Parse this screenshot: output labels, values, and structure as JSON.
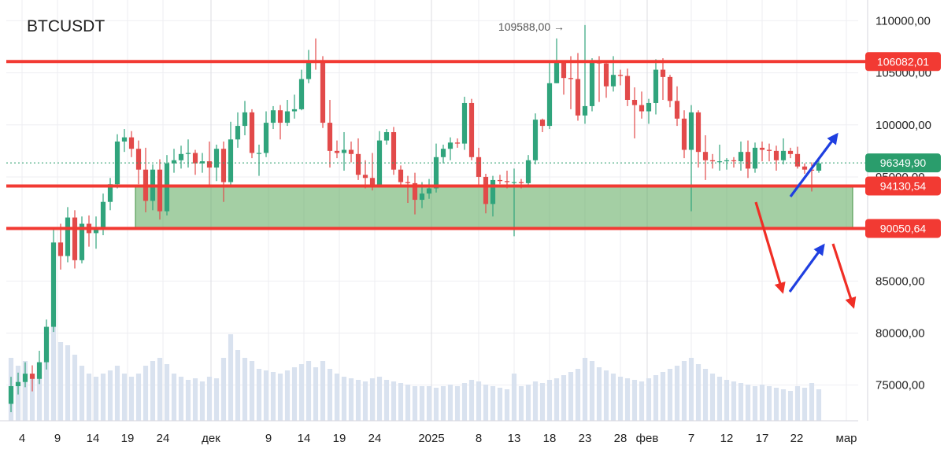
{
  "chart_data": {
    "type": "candlestick",
    "symbol": "BTCUSDT",
    "x_labels": [
      "4",
      "9",
      "14",
      "19",
      "24",
      "дек",
      "9",
      "14",
      "19",
      "24",
      "2025",
      "8",
      "13",
      "18",
      "23",
      "28",
      "фев",
      "7",
      "12",
      "17",
      "22",
      "мар"
    ],
    "y_ticks": [
      "75000,00",
      "80000,00",
      "85000,00",
      "90000,00",
      "95000,00",
      "100000,00",
      "105000,00",
      "110000,00"
    ],
    "ylim": [
      72000,
      111500
    ],
    "current_price": 96349.9,
    "current_price_label": "96349,90",
    "max_annotation": "109588,00 →",
    "max_value": 109588.0,
    "horizontal_levels": [
      {
        "value": 106082.01,
        "label": "106082,01",
        "color": "#f23a33"
      },
      {
        "value": 94130.54,
        "label": "94130,54",
        "color": "#f23a33"
      },
      {
        "value": 90050.64,
        "label": "90050,64",
        "color": "#f23a33"
      }
    ],
    "zone": {
      "from": 90050.64,
      "to": 94130.54,
      "color": "#5aa85a"
    },
    "candles": [
      [
        73200,
        74900,
        72400,
        75800,
        0.4
      ],
      [
        74900,
        75300,
        74100,
        76200,
        0.35
      ],
      [
        75300,
        76100,
        74800,
        77200,
        0.38
      ],
      [
        76100,
        75600,
        74400,
        76900,
        0.3
      ],
      [
        75600,
        77200,
        75100,
        78300,
        0.28
      ],
      [
        77200,
        80600,
        76500,
        81300,
        0.45
      ],
      [
        80600,
        88700,
        80100,
        89900,
        0.6
      ],
      [
        88700,
        87400,
        86100,
        90500,
        0.5
      ],
      [
        87400,
        91100,
        86800,
        92100,
        0.48
      ],
      [
        91100,
        87000,
        86200,
        91800,
        0.42
      ],
      [
        87000,
        90500,
        86700,
        91200,
        0.35
      ],
      [
        90500,
        89600,
        88300,
        91300,
        0.3
      ],
      [
        89600,
        90000,
        88100,
        91200,
        0.28
      ],
      [
        90000,
        92600,
        89400,
        93400,
        0.3
      ],
      [
        92600,
        94300,
        91800,
        94900,
        0.32
      ],
      [
        94300,
        98400,
        93900,
        99100,
        0.35
      ],
      [
        98400,
        98800,
        97400,
        99600,
        0.3
      ],
      [
        98800,
        97700,
        96900,
        99400,
        0.28
      ],
      [
        97700,
        95700,
        94300,
        98500,
        0.3
      ],
      [
        95700,
        92700,
        91600,
        97800,
        0.35
      ],
      [
        92700,
        95700,
        91800,
        96200,
        0.38
      ],
      [
        95700,
        91700,
        90900,
        96700,
        0.4
      ],
      [
        91700,
        96300,
        91300,
        97100,
        0.36
      ],
      [
        96300,
        96600,
        95400,
        97700,
        0.3
      ],
      [
        96600,
        97200,
        95800,
        98000,
        0.28
      ],
      [
        97200,
        97300,
        95900,
        98600,
        0.26
      ],
      [
        97300,
        96300,
        95200,
        97600,
        0.27
      ],
      [
        96300,
        96500,
        95400,
        97300,
        0.25
      ],
      [
        96500,
        95900,
        94200,
        98400,
        0.28
      ],
      [
        95900,
        97700,
        94600,
        98100,
        0.27
      ],
      [
        97700,
        94500,
        92600,
        98400,
        0.4
      ],
      [
        94500,
        98600,
        94100,
        100300,
        0.55
      ],
      [
        98600,
        99900,
        97800,
        101200,
        0.45
      ],
      [
        99900,
        101200,
        99000,
        102300,
        0.4
      ],
      [
        101200,
        97300,
        96800,
        101500,
        0.38
      ],
      [
        97300,
        97300,
        95100,
        98100,
        0.33
      ],
      [
        97300,
        100200,
        96900,
        101300,
        0.32
      ],
      [
        100200,
        101400,
        99600,
        101800,
        0.31
      ],
      [
        101400,
        100200,
        98600,
        101900,
        0.3
      ],
      [
        100200,
        101300,
        99900,
        102400,
        0.32
      ],
      [
        101300,
        101500,
        100600,
        102900,
        0.34
      ],
      [
        101500,
        104400,
        101400,
        105300,
        0.36
      ],
      [
        104400,
        106100,
        104000,
        107200,
        0.38
      ],
      [
        106100,
        106000,
        105300,
        108300,
        0.34
      ],
      [
        106000,
        100200,
        99700,
        106600,
        0.38
      ],
      [
        100200,
        97500,
        95900,
        102400,
        0.33
      ],
      [
        97500,
        97300,
        96800,
        98500,
        0.3
      ],
      [
        97300,
        97600,
        95600,
        99300,
        0.28
      ],
      [
        97600,
        97200,
        96400,
        98400,
        0.27
      ],
      [
        97200,
        95200,
        94700,
        98700,
        0.26
      ],
      [
        95200,
        94900,
        93900,
        96600,
        0.25
      ],
      [
        94900,
        94200,
        93700,
        97300,
        0.27
      ],
      [
        94200,
        98500,
        94000,
        99400,
        0.28
      ],
      [
        98500,
        99300,
        98100,
        99600,
        0.26
      ],
      [
        99300,
        95700,
        95200,
        99800,
        0.25
      ],
      [
        95700,
        94500,
        94000,
        96100,
        0.24
      ],
      [
        94500,
        94400,
        92500,
        95100,
        0.23
      ],
      [
        94400,
        92800,
        91400,
        95400,
        0.22
      ],
      [
        92800,
        93400,
        92000,
        94500,
        0.22
      ],
      [
        93400,
        93900,
        92900,
        94800,
        0.22
      ],
      [
        93900,
        96900,
        93500,
        98200,
        0.21
      ],
      [
        96900,
        97700,
        96300,
        98100,
        0.22
      ],
      [
        97700,
        98300,
        96600,
        98800,
        0.23
      ],
      [
        98300,
        98200,
        97800,
        98700,
        0.22
      ],
      [
        98200,
        102100,
        97600,
        102700,
        0.24
      ],
      [
        102100,
        96900,
        96600,
        102500,
        0.26
      ],
      [
        96900,
        95000,
        94100,
        97800,
        0.25
      ],
      [
        95000,
        92400,
        91500,
        95300,
        0.23
      ],
      [
        92400,
        94700,
        91200,
        95100,
        0.22
      ],
      [
        94700,
        94600,
        94300,
        95200,
        0.21
      ],
      [
        94600,
        94500,
        93900,
        95600,
        0.2
      ],
      [
        94500,
        94500,
        89300,
        95800,
        0.3
      ],
      [
        94500,
        94400,
        93900,
        94800,
        0.22
      ],
      [
        94400,
        96600,
        94200,
        97100,
        0.23
      ],
      [
        96600,
        100500,
        96200,
        101100,
        0.25
      ],
      [
        100500,
        99900,
        99300,
        100600,
        0.24
      ],
      [
        99900,
        104000,
        99600,
        106000,
        0.26
      ],
      [
        104000,
        106100,
        104000,
        108300,
        0.27
      ],
      [
        106100,
        104500,
        102900,
        106200,
        0.29
      ],
      [
        104500,
        104400,
        101500,
        106600,
        0.31
      ],
      [
        104400,
        100900,
        100400,
        106900,
        0.33
      ],
      [
        100900,
        101800,
        100100,
        109588,
        0.4
      ],
      [
        101800,
        106100,
        101300,
        106400,
        0.38
      ],
      [
        106100,
        105900,
        102200,
        106600,
        0.34
      ],
      [
        105900,
        103700,
        102600,
        106000,
        0.32
      ],
      [
        103700,
        104800,
        103200,
        106600,
        0.3
      ],
      [
        104800,
        104700,
        103800,
        105300,
        0.28
      ],
      [
        104700,
        102400,
        101800,
        105400,
        0.27
      ],
      [
        102400,
        101900,
        98700,
        103600,
        0.26
      ],
      [
        101900,
        101300,
        100600,
        103200,
        0.25
      ],
      [
        101300,
        102100,
        100100,
        102500,
        0.27
      ],
      [
        102100,
        105300,
        101000,
        106300,
        0.29
      ],
      [
        105300,
        104600,
        102400,
        106400,
        0.31
      ],
      [
        104600,
        102300,
        101700,
        104800,
        0.33
      ],
      [
        102300,
        100600,
        99900,
        103700,
        0.35
      ],
      [
        100600,
        97600,
        96800,
        101400,
        0.38
      ],
      [
        97600,
        101200,
        91700,
        101900,
        0.4
      ],
      [
        101200,
        97400,
        95900,
        101400,
        0.36
      ],
      [
        97400,
        96600,
        94700,
        99000,
        0.33
      ],
      [
        96600,
        96500,
        95800,
        97200,
        0.3
      ],
      [
        96500,
        96500,
        95600,
        98100,
        0.28
      ],
      [
        96500,
        96600,
        95700,
        96800,
        0.26
      ],
      [
        96600,
        96500,
        95900,
        96900,
        0.25
      ],
      [
        96500,
        97400,
        95600,
        98400,
        0.24
      ],
      [
        97400,
        95800,
        94900,
        98500,
        0.23
      ],
      [
        95800,
        97800,
        95400,
        98300,
        0.22
      ],
      [
        97800,
        97600,
        96500,
        98400,
        0.23
      ],
      [
        97600,
        97500,
        96500,
        98200,
        0.22
      ],
      [
        97500,
        96600,
        95600,
        98000,
        0.21
      ],
      [
        96600,
        97500,
        96200,
        98700,
        0.2
      ],
      [
        97500,
        97200,
        96800,
        97800,
        0.19
      ],
      [
        97200,
        96000,
        95800,
        97900,
        0.22
      ],
      [
        96000,
        95700,
        95300,
        96300,
        0.21
      ],
      [
        95700,
        95600,
        93600,
        96400,
        0.24
      ],
      [
        95600,
        96300,
        95400,
        96800,
        0.2
      ]
    ]
  }
}
